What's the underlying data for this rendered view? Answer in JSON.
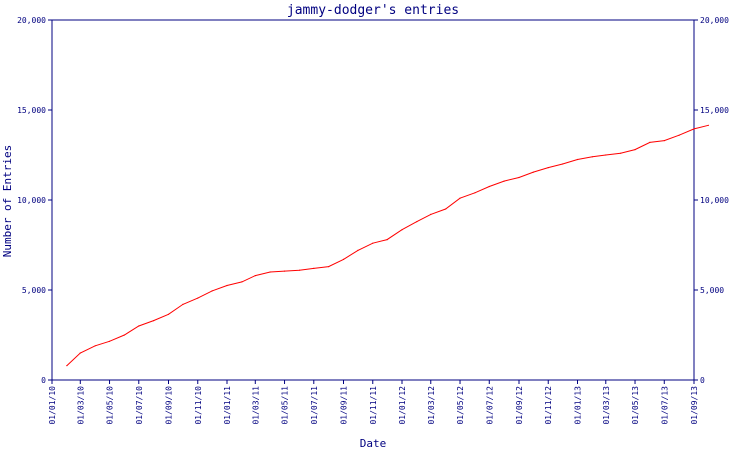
{
  "colors": {
    "axis": "#000080",
    "text": "#000080",
    "line": "#ff0000",
    "background": "#ffffff"
  },
  "chart_data": {
    "type": "line",
    "title": "jammy-dodger's entries",
    "xlabel": "Date",
    "ylabel": "Number of Entries",
    "ylim": [
      0,
      20000
    ],
    "y_ticks": [
      0,
      5000,
      10000,
      15000,
      20000
    ],
    "y_tick_labels": [
      "0",
      "5,000",
      "10,000",
      "15,000",
      "20,000"
    ],
    "x_range": [
      "2010-01-01",
      "2013-09-01"
    ],
    "x_ticks": [
      "2010-01-01",
      "2010-03-01",
      "2010-05-01",
      "2010-07-01",
      "2010-09-01",
      "2010-11-01",
      "2011-01-01",
      "2011-03-01",
      "2011-05-01",
      "2011-07-01",
      "2011-09-01",
      "2011-11-01",
      "2012-01-01",
      "2012-03-01",
      "2012-05-01",
      "2012-07-01",
      "2012-09-01",
      "2012-11-01",
      "2013-01-01",
      "2013-03-01",
      "2013-05-01",
      "2013-07-01",
      "2013-09-01"
    ],
    "x_tick_labels": [
      "01/01/10",
      "01/03/10",
      "01/05/10",
      "01/07/10",
      "01/09/10",
      "01/11/10",
      "01/01/11",
      "01/03/11",
      "01/05/11",
      "01/07/11",
      "01/09/11",
      "01/11/11",
      "01/01/12",
      "01/03/12",
      "01/05/12",
      "01/07/12",
      "01/09/12",
      "01/11/12",
      "01/01/13",
      "01/03/13",
      "01/05/13",
      "01/07/13",
      "01/09/13"
    ],
    "grid": false,
    "series": [
      {
        "points": [
          {
            "x": "2010-02-01",
            "y": 800
          },
          {
            "x": "2010-03-01",
            "y": 1500
          },
          {
            "x": "2010-04-01",
            "y": 1900
          },
          {
            "x": "2010-05-01",
            "y": 2150
          },
          {
            "x": "2010-06-01",
            "y": 2500
          },
          {
            "x": "2010-07-01",
            "y": 3000
          },
          {
            "x": "2010-08-01",
            "y": 3300
          },
          {
            "x": "2010-09-01",
            "y": 3650
          },
          {
            "x": "2010-10-01",
            "y": 4200
          },
          {
            "x": "2010-11-01",
            "y": 4550
          },
          {
            "x": "2010-12-01",
            "y": 4950
          },
          {
            "x": "2011-01-01",
            "y": 5250
          },
          {
            "x": "2011-02-01",
            "y": 5450
          },
          {
            "x": "2011-03-01",
            "y": 5800
          },
          {
            "x": "2011-04-01",
            "y": 6000
          },
          {
            "x": "2011-05-01",
            "y": 6050
          },
          {
            "x": "2011-06-01",
            "y": 6100
          },
          {
            "x": "2011-07-01",
            "y": 6200
          },
          {
            "x": "2011-08-01",
            "y": 6300
          },
          {
            "x": "2011-09-01",
            "y": 6700
          },
          {
            "x": "2011-10-01",
            "y": 7200
          },
          {
            "x": "2011-11-01",
            "y": 7600
          },
          {
            "x": "2011-12-01",
            "y": 7800
          },
          {
            "x": "2012-01-01",
            "y": 8350
          },
          {
            "x": "2012-02-01",
            "y": 8800
          },
          {
            "x": "2012-03-01",
            "y": 9200
          },
          {
            "x": "2012-04-01",
            "y": 9500
          },
          {
            "x": "2012-05-01",
            "y": 10100
          },
          {
            "x": "2012-06-01",
            "y": 10400
          },
          {
            "x": "2012-07-01",
            "y": 10750
          },
          {
            "x": "2012-08-01",
            "y": 11050
          },
          {
            "x": "2012-09-01",
            "y": 11250
          },
          {
            "x": "2012-10-01",
            "y": 11550
          },
          {
            "x": "2012-11-01",
            "y": 11800
          },
          {
            "x": "2012-12-01",
            "y": 12000
          },
          {
            "x": "2013-01-01",
            "y": 12250
          },
          {
            "x": "2013-02-01",
            "y": 12400
          },
          {
            "x": "2013-03-01",
            "y": 12500
          },
          {
            "x": "2013-04-01",
            "y": 12600
          },
          {
            "x": "2013-05-01",
            "y": 12800
          },
          {
            "x": "2013-06-01",
            "y": 13200
          },
          {
            "x": "2013-07-01",
            "y": 13300
          },
          {
            "x": "2013-08-01",
            "y": 13600
          },
          {
            "x": "2013-09-01",
            "y": 13950
          },
          {
            "x": "2013-10-01",
            "y": 14150
          }
        ]
      }
    ]
  }
}
